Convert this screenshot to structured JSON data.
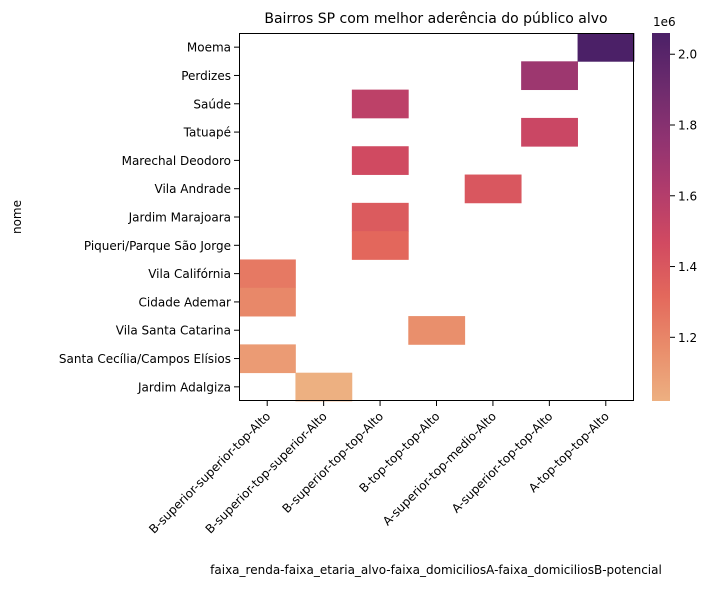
{
  "chart_data": {
    "type": "heatmap",
    "title": "Bairros SP com melhor aderência do público alvo",
    "xlabel": "faixa_renda-faixa_etaria_alvo-faixa_domiciliosA-faixa_domiciliosB-potencial",
    "ylabel": "nome",
    "rows": [
      "Moema",
      "Perdizes",
      "Saúde",
      "Tatuapé",
      "Marechal Deodoro",
      "Vila Andrade",
      "Jardim Marajoara",
      "Piqueri/Parque São Jorge",
      "Vila Califórnia",
      "Cidade Ademar",
      "Vila Santa Catarina",
      "Santa Cecília/Campos Elísios",
      "Jardim Adalgiza"
    ],
    "columns": [
      "B-superior-superior-top-Alto",
      "B-superior-top-superior-Alto",
      "B-superior-top-top-Alto",
      "B-top-top-top-Alto",
      "A-superior-top-medio-Alto",
      "A-superior-top-top-Alto",
      "A-top-top-top-Alto"
    ],
    "cells": [
      {
        "row": 0,
        "col": 6,
        "value": 2060000
      },
      {
        "row": 1,
        "col": 5,
        "value": 1700000
      },
      {
        "row": 2,
        "col": 2,
        "value": 1560000
      },
      {
        "row": 3,
        "col": 5,
        "value": 1500000
      },
      {
        "row": 4,
        "col": 2,
        "value": 1470000
      },
      {
        "row": 5,
        "col": 4,
        "value": 1400000
      },
      {
        "row": 6,
        "col": 2,
        "value": 1380000
      },
      {
        "row": 7,
        "col": 2,
        "value": 1320000
      },
      {
        "row": 8,
        "col": 0,
        "value": 1250000
      },
      {
        "row": 9,
        "col": 0,
        "value": 1190000
      },
      {
        "row": 10,
        "col": 3,
        "value": 1160000
      },
      {
        "row": 11,
        "col": 0,
        "value": 1110000
      },
      {
        "row": 12,
        "col": 1,
        "value": 1020000
      }
    ],
    "colorbar": {
      "vmin": 1020000,
      "vmax": 2060000,
      "ticks": [
        {
          "value": 1200000,
          "label": "1.2"
        },
        {
          "value": 1400000,
          "label": "1.4"
        },
        {
          "value": 1600000,
          "label": "1.6"
        },
        {
          "value": 1800000,
          "label": "1.8"
        },
        {
          "value": 2000000,
          "label": "2.0"
        }
      ],
      "offset_label": "1e6",
      "colormap": "flare",
      "stops": [
        "#edb081",
        "#e98d6b",
        "#e3685c",
        "#d14a61",
        "#b13c6c",
        "#8f3371",
        "#6c2b6d",
        "#4b2067"
      ]
    }
  }
}
